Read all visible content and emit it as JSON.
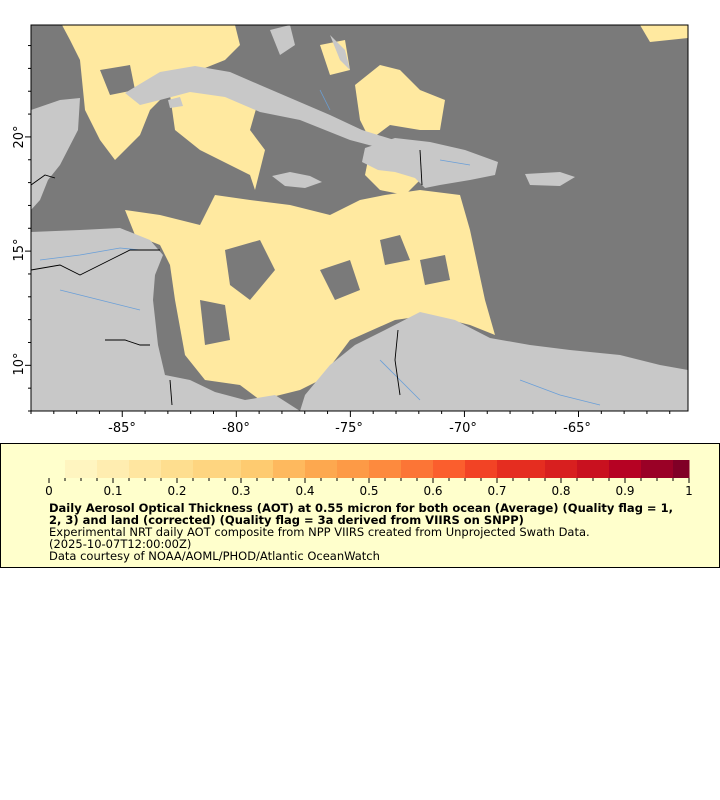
{
  "map": {
    "lon_range": [
      -89,
      -60.2
    ],
    "lat_range": [
      8,
      24.9
    ],
    "lon_ticks": [
      "-85°",
      "-80°",
      "-75°",
      "-70°",
      "-65°"
    ],
    "lat_ticks": [
      "20°",
      "15°",
      "10°"
    ],
    "colors": {
      "ocean_nodata": "#7a7a7a",
      "land": "#c8c8c8",
      "rivers": "#6a9fd8",
      "borders": "#000000",
      "aot_low": "#ffe9a0"
    }
  },
  "legend": {
    "colorbar_ticks": [
      "0",
      "0.1",
      "0.2",
      "0.3",
      "0.4",
      "0.5",
      "0.6",
      "0.7",
      "0.8",
      "0.9",
      "1"
    ],
    "colorbar_range": [
      0,
      1
    ],
    "colormap": [
      "#ffffcc",
      "#fff5c0",
      "#ffedb0",
      "#ffe6a0",
      "#fede8f",
      "#fed580",
      "#fecb70",
      "#feb95e",
      "#fda84f",
      "#fd9a46",
      "#fd8a3e",
      "#fc7536",
      "#fb5e2d",
      "#f24325",
      "#e52d20",
      "#d81f1f",
      "#c9111f",
      "#b60223",
      "#9a0126",
      "#800026"
    ],
    "title_line1": "Daily Aerosol Optical Thickness (AOT) at 0.55 micron for both ocean (Average) (Quality flag = 1,",
    "title_line2": "2, 3) and land (corrected) (Quality flag = 3a derived from VIIRS on SNPP)",
    "subtitle": "Experimental NRT daily AOT composite from NPP VIIRS created from Unprojected Swath Data.",
    "time": "(2025-10-07T12:00:00Z)",
    "credit": "Data courtesy of NOAA/AOML/PHOD/Atlantic OceanWatch"
  }
}
